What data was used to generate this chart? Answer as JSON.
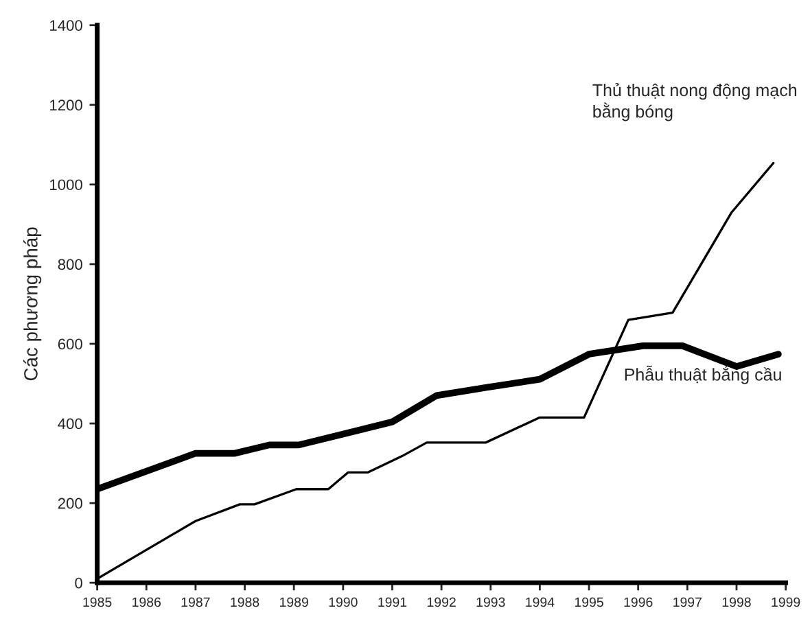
{
  "chart_data": {
    "type": "line",
    "ylabel": "Các phương pháp",
    "series": [
      {
        "name": "Thủ thuật nong động mạch bằng bóng",
        "color": "#000000",
        "x": [
          1985,
          1987,
          1987.9,
          1988.2,
          1989.05,
          1989.7,
          1990.1,
          1990.5,
          1991.2,
          1991.7,
          1992.9,
          1994.0,
          1994.9,
          1995.8,
          1996.7,
          1997.9,
          1998.75
        ],
        "values": [
          10,
          155,
          197,
          197,
          235,
          235,
          277,
          277,
          318,
          352,
          352,
          415,
          415,
          660,
          678,
          930,
          1054
        ]
      },
      {
        "name": "Phẫu thuật bắng cầu",
        "color": "#000000",
        "x": [
          1985,
          1987,
          1987.8,
          1988.5,
          1989.1,
          1991,
          1991.9,
          1992.9,
          1994.0,
          1995.0,
          1996.1,
          1996.9,
          1998.0,
          1998.85
        ],
        "values": [
          235,
          325,
          325,
          346,
          346,
          404,
          470,
          490,
          511,
          574,
          595,
          595,
          543,
          574
        ]
      }
    ],
    "xlim": [
      1985,
      1999
    ],
    "xticks": [
      1985,
      1986,
      1987,
      1988,
      1989,
      1990,
      1991,
      1992,
      1993,
      1994,
      1995,
      1996,
      1997,
      1998,
      1999
    ],
    "ylim": [
      0,
      1400
    ],
    "yticks": [
      0,
      200,
      400,
      600,
      800,
      1000,
      1200,
      1400
    ],
    "grid": false,
    "legend": false,
    "marker": "none",
    "line_style": "solid"
  }
}
